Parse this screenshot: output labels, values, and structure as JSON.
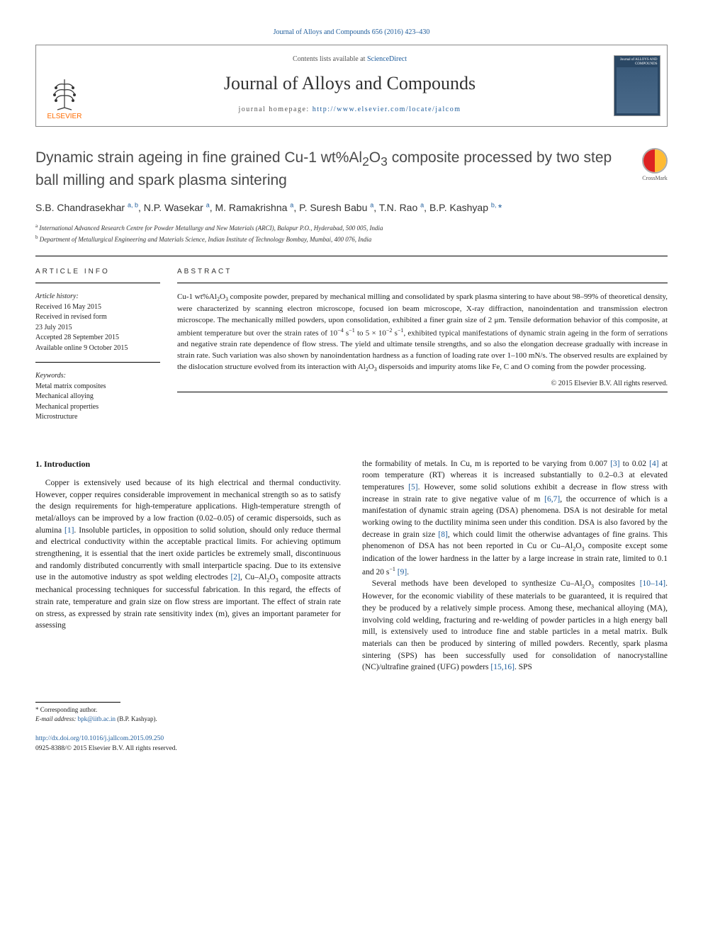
{
  "top_citation": "Journal of Alloys and Compounds 656 (2016) 423–430",
  "header": {
    "contents_prefix": "Contents lists available at ",
    "contents_link": "ScienceDirect",
    "journal_name": "Journal of Alloys and Compounds",
    "homepage_prefix": "journal homepage: ",
    "homepage_url": "http://www.elsevier.com/locate/jalcom",
    "publisher_name": "ELSEVIER",
    "cover_text": "Journal of ALLOYS AND COMPOUNDS"
  },
  "article": {
    "title_html": "Dynamic strain ageing in fine grained Cu-1 wt%Al<sub>2</sub>O<sub>3</sub> composite processed by two step ball milling and spark plasma sintering",
    "crossmark_label": "CrossMark",
    "authors_html": "S.B. Chandrasekhar <span class='sup'>a, b</span>, N.P. Wasekar <span class='sup'>a</span>, M. Ramakrishna <span class='sup'>a</span>, P. Suresh Babu <span class='sup'>a</span>, T.N. Rao <span class='sup'>a</span>, B.P. Kashyap <span class='sup'>b, </span><span class='star'>*</span>",
    "affiliations": [
      {
        "marker": "a",
        "text": "International Advanced Research Centre for Powder Metallurgy and New Materials (ARCI), Balapur P.O., Hyderabad, 500 005, India"
      },
      {
        "marker": "b",
        "text": "Department of Metallurgical Engineering and Materials Science, Indian Institute of Technology Bombay, Mumbai, 400 076, India"
      }
    ]
  },
  "info": {
    "section_label": "ARTICLE INFO",
    "history_hdr": "Article history:",
    "history": [
      "Received 16 May 2015",
      "Received in revised form",
      "23 July 2015",
      "Accepted 28 September 2015",
      "Available online 9 October 2015"
    ],
    "keywords_hdr": "Keywords:",
    "keywords": [
      "Metal matrix composites",
      "Mechanical alloying",
      "Mechanical properties",
      "Microstructure"
    ]
  },
  "abstract": {
    "section_label": "ABSTRACT",
    "text_html": "Cu-1 wt%Al<span class='sub'>2</span>O<span class='sub'>3</span> composite powder, prepared by mechanical milling and consolidated by spark plasma sintering to have about 98–99% of theoretical density, were characterized by scanning electron microscope, focused ion beam microscope, X-ray diffraction, nanoindentation and transmission electron microscope. The mechanically milled powders, upon consolidation, exhibited a finer grain size of 2 μm. Tensile deformation behavior of this composite, at ambient temperature but over the strain rates of 10<span class='sup'>−4</span> s<span class='sup'>−1</span> to 5 × 10<span class='sup'>−2</span> s<span class='sup'>−1</span>, exhibited typical manifestations of dynamic strain ageing in the form of serrations and negative strain rate dependence of flow stress. The yield and ultimate tensile strengths, and so also the elongation decrease gradually with increase in strain rate. Such variation was also shown by nanoindentation hardness as a function of loading rate over 1–100 mN/s. The observed results are explained by the dislocation structure evolved from its interaction with Al<span class='sub'>2</span>O<span class='sub'>3</span> dispersoids and impurity atoms like Fe, C and O coming from the powder processing.",
    "copyright": "© 2015 Elsevier B.V. All rights reserved."
  },
  "body": {
    "section_heading": "1. Introduction",
    "col1_html": "Copper is extensively used because of its high electrical and thermal conductivity. However, copper requires considerable improvement in mechanical strength so as to satisfy the design requirements for high-temperature applications. High-temperature strength of metal/alloys can be improved by a low fraction (0.02–0.05) of ceramic dispersoids, such as alumina <a>[1]</a>. Insoluble particles, in opposition to solid solution, should only reduce thermal and electrical conductivity within the acceptable practical limits. For achieving optimum strengthening, it is essential that the inert oxide particles be extremely small, discontinuous and randomly distributed concurrently with small interparticle spacing. Due to its extensive use in the automotive industry as spot welding electrodes <a>[2]</a>, Cu–Al<span class='sub'>2</span>O<span class='sub'>3</span> composite attracts mechanical processing techniques for successful fabrication. In this regard, the effects of strain rate, temperature and grain size on flow stress are important. The effect of strain rate on stress, as expressed by strain rate sensitivity index (m), gives an important parameter for assessing",
    "col2_p1_html": "the formability of metals. In Cu, m is reported to be varying from 0.007 <a>[3]</a> to 0.02 <a>[4]</a> at room temperature (RT) whereas it is increased substantially to 0.2–0.3 at elevated temperatures <a>[5]</a>. However, some solid solutions exhibit a decrease in flow stress with increase in strain rate to give negative value of m <a>[6,7]</a>, the occurrence of which is a manifestation of dynamic strain ageing (DSA) phenomena. DSA is not desirable for metal working owing to the ductility minima seen under this condition. DSA is also favored by the decrease in grain size <a>[8]</a>, which could limit the otherwise advantages of fine grains. This phenomenon of DSA has not been reported in Cu or Cu–Al<span class='sub'>2</span>O<span class='sub'>3</span> composite except some indication of the lower hardness in the latter by a large increase in strain rate, limited to 0.1 and 20 s<span class='sup'>−1</span> <a>[9]</a>.",
    "col2_p2_html": "Several methods have been developed to synthesize Cu–Al<span class='sub'>2</span>O<span class='sub'>3</span> composites <a>[10–14]</a>. However, for the economic viability of these materials to be guaranteed, it is required that they be produced by a relatively simple process. Among these, mechanical alloying (MA), involving cold welding, fracturing and re-welding of powder particles in a high energy ball mill, is extensively used to introduce fine and stable particles in a metal matrix. Bulk materials can then be produced by sintering of milled powders. Recently, spark plasma sintering (SPS) has been successfully used for consolidation of nanocrystalline (NC)/ultrafine grained (UFG) powders <a>[15,16]</a>. SPS"
  },
  "footer": {
    "corr_label": "* Corresponding author.",
    "email_label": "E-mail address: ",
    "email": "bpk@iitb.ac.in",
    "email_name": " (B.P. Kashyap).",
    "doi_url": "http://dx.doi.org/10.1016/j.jallcom.2015.09.250",
    "issn_line": "0925-8388/© 2015 Elsevier B.V. All rights reserved."
  },
  "colors": {
    "link": "#1e5c9b",
    "orange": "#ff6c00",
    "text": "#1a1a1a"
  }
}
